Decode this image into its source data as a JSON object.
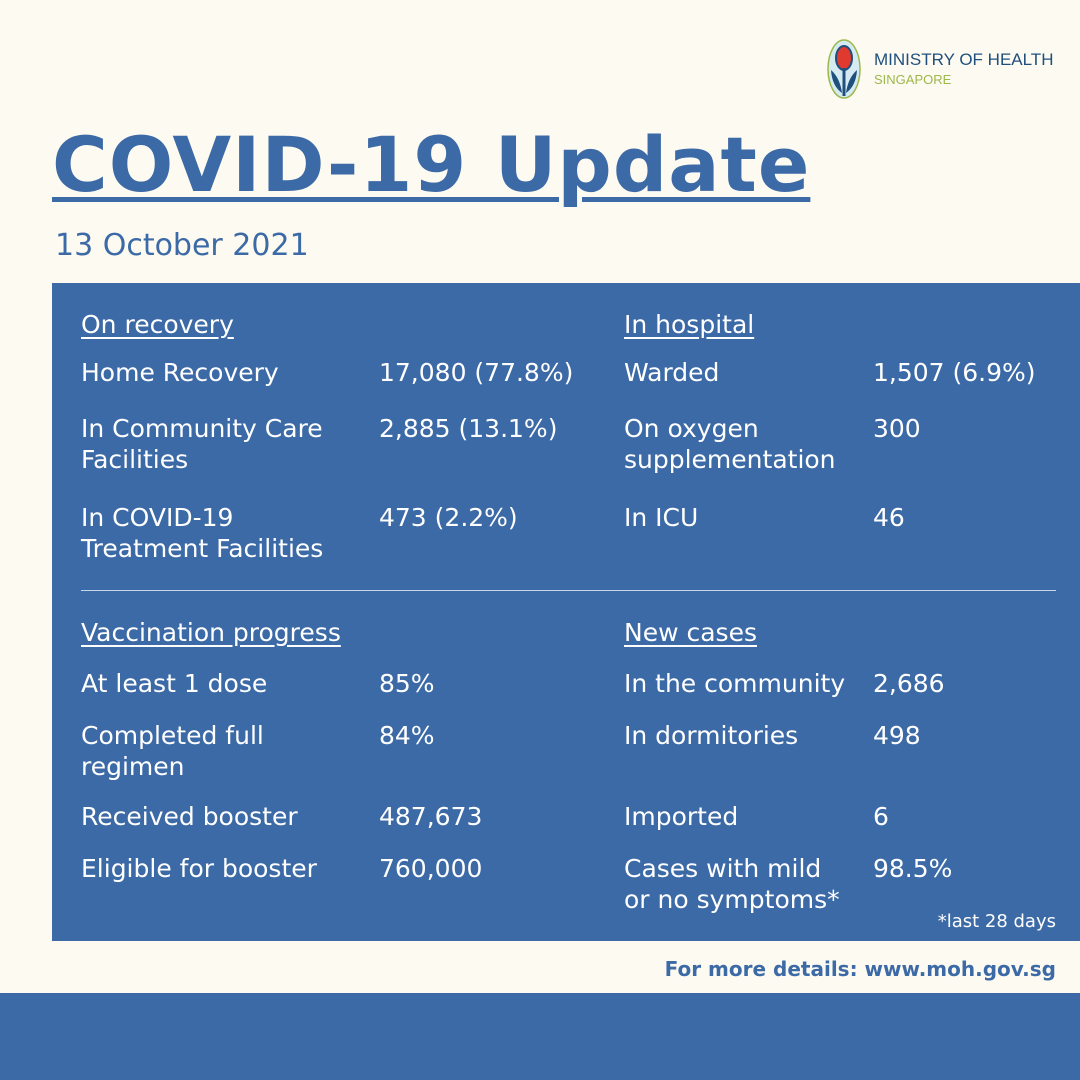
{
  "logo": {
    "line1": "MINISTRY OF HEALTH",
    "line2": "SINGAPORE"
  },
  "title": "COVID-19 Update",
  "date": "13 October 2021",
  "recovery": {
    "heading": "On recovery",
    "rows": [
      {
        "label": "Home Recovery",
        "value": "17,080 (77.8%)"
      },
      {
        "label": "In Community Care\nFacilities",
        "value": "2,885 (13.1%)"
      },
      {
        "label": "In COVID-19\nTreatment Facilities",
        "value": "473 (2.2%)"
      }
    ]
  },
  "hospital": {
    "heading": "In hospital",
    "rows": [
      {
        "label": "Warded",
        "value": "1,507 (6.9%)"
      },
      {
        "label": "On oxygen\nsupplementation",
        "value": "300"
      },
      {
        "label": "In ICU",
        "value": "46"
      }
    ]
  },
  "vaccination": {
    "heading": "Vaccination progress",
    "rows": [
      {
        "label": "At least 1 dose",
        "value": "85%"
      },
      {
        "label": "Completed full\nregimen",
        "value": "84%"
      },
      {
        "label": "Received booster",
        "value": "487,673"
      },
      {
        "label": "Eligible for booster",
        "value": "760,000"
      }
    ]
  },
  "new_cases": {
    "heading": "New cases",
    "rows": [
      {
        "label": "In the community",
        "value": "2,686"
      },
      {
        "label": "In dormitories",
        "value": "498"
      },
      {
        "label": "Imported",
        "value": "6"
      },
      {
        "label": "Cases with mild\nor no symptoms*",
        "value": "98.5%"
      }
    ]
  },
  "note": "*last 28 days",
  "footer": "For more details: www.moh.gov.sg"
}
